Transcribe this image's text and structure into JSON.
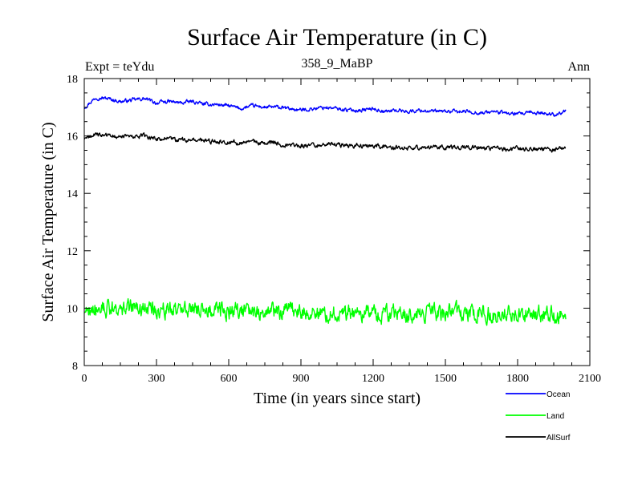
{
  "chart_data": {
    "type": "line",
    "title": "Surface Air Temperature (in C)",
    "subtitle_left": "Expt = teYdu",
    "subtitle_center": "358_9_MaBP",
    "subtitle_right": "Ann",
    "xlabel": "Time (in years since start)",
    "ylabel": "Surface Air Temperature (in C)",
    "xlim": [
      0,
      2100
    ],
    "ylim": [
      8,
      18
    ],
    "xticks": [
      0,
      300,
      600,
      900,
      1200,
      1500,
      1800,
      2100
    ],
    "yticks": [
      8,
      10,
      12,
      14,
      16,
      18
    ],
    "xtick_labels": [
      "0",
      "300",
      "600",
      "900",
      "1200",
      "1500",
      "1800",
      "2100"
    ],
    "ytick_labels": [
      "8",
      "10",
      "12",
      "14",
      "16",
      "18"
    ],
    "legend_position": "bottom-right, below plot",
    "series": [
      {
        "name": "Ocean",
        "color": "#0000ff",
        "x": [
          0,
          50,
          100,
          150,
          200,
          250,
          300,
          350,
          400,
          450,
          500,
          550,
          600,
          650,
          700,
          750,
          800,
          850,
          900,
          950,
          1000,
          1050,
          1100,
          1150,
          1200,
          1250,
          1300,
          1350,
          1400,
          1450,
          1500,
          1550,
          1600,
          1650,
          1700,
          1750,
          1800,
          1850,
          1900,
          1950,
          2000
        ],
        "values": [
          17.0,
          17.35,
          17.3,
          17.2,
          17.25,
          17.3,
          17.15,
          17.2,
          17.15,
          17.2,
          17.1,
          17.1,
          17.05,
          16.95,
          17.05,
          17.0,
          17.0,
          16.95,
          16.9,
          16.95,
          17.0,
          16.95,
          16.9,
          16.9,
          16.95,
          16.85,
          16.9,
          16.85,
          16.9,
          16.85,
          16.85,
          16.85,
          16.85,
          16.8,
          16.85,
          16.8,
          16.75,
          16.8,
          16.8,
          16.75,
          16.85
        ],
        "noise": 0.1
      },
      {
        "name": "Land",
        "color": "#00ff00",
        "x": [
          0,
          50,
          100,
          150,
          200,
          250,
          300,
          350,
          400,
          450,
          500,
          550,
          600,
          650,
          700,
          750,
          800,
          850,
          900,
          950,
          1000,
          1050,
          1100,
          1150,
          1200,
          1250,
          1300,
          1350,
          1400,
          1450,
          1500,
          1550,
          1600,
          1650,
          1700,
          1750,
          1800,
          1850,
          1900,
          1950,
          2000
        ],
        "values": [
          9.95,
          10.05,
          10.0,
          9.95,
          10.0,
          10.0,
          9.95,
          9.95,
          9.95,
          10.0,
          9.95,
          9.95,
          9.9,
          9.9,
          9.95,
          9.9,
          9.9,
          9.9,
          9.85,
          9.85,
          9.85,
          9.85,
          9.85,
          9.85,
          9.8,
          9.8,
          9.8,
          9.8,
          9.8,
          9.8,
          9.8,
          9.8,
          9.8,
          9.8,
          9.8,
          9.8,
          9.75,
          9.75,
          9.75,
          9.75,
          9.75
        ],
        "noise": 0.45
      },
      {
        "name": "AllSurf",
        "color": "#000000",
        "x": [
          0,
          50,
          100,
          150,
          200,
          250,
          300,
          350,
          400,
          450,
          500,
          550,
          600,
          650,
          700,
          750,
          800,
          850,
          900,
          950,
          1000,
          1050,
          1100,
          1150,
          1200,
          1250,
          1300,
          1350,
          1400,
          1450,
          1500,
          1550,
          1600,
          1650,
          1700,
          1750,
          1800,
          1850,
          1900,
          1950,
          2000
        ],
        "values": [
          15.9,
          16.05,
          16.0,
          16.0,
          15.95,
          16.0,
          15.9,
          15.9,
          15.85,
          15.85,
          15.85,
          15.8,
          15.8,
          15.75,
          15.8,
          15.75,
          15.75,
          15.7,
          15.65,
          15.7,
          15.7,
          15.7,
          15.65,
          15.65,
          15.65,
          15.6,
          15.6,
          15.6,
          15.6,
          15.6,
          15.6,
          15.6,
          15.6,
          15.55,
          15.6,
          15.55,
          15.55,
          15.55,
          15.55,
          15.5,
          15.6
        ],
        "noise": 0.12
      }
    ]
  }
}
